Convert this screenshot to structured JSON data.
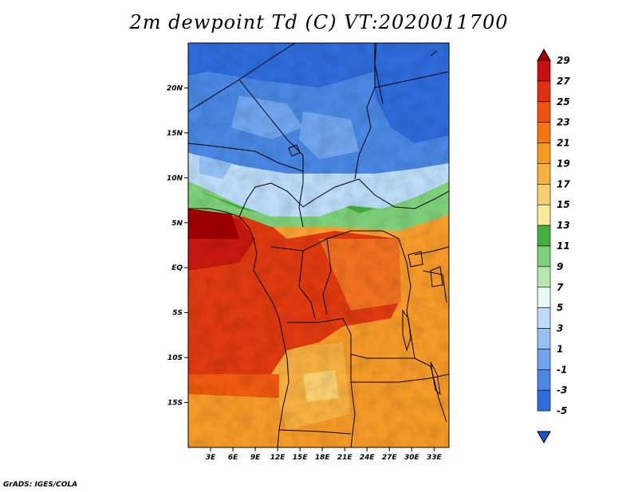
{
  "map": {
    "title": "2m dewpoint Td (C) VT:2020011700",
    "credit": "GrADS: IGES/COLA",
    "lon_range": [
      0,
      35
    ],
    "lat_range": [
      -20,
      25
    ],
    "lat_ticks": [
      {
        "value": 20,
        "label": "20N"
      },
      {
        "value": 15,
        "label": "15N"
      },
      {
        "value": 10,
        "label": "10N"
      },
      {
        "value": 5,
        "label": "5N"
      },
      {
        "value": 0,
        "label": "EQ"
      },
      {
        "value": -5,
        "label": "5S"
      },
      {
        "value": -10,
        "label": "10S"
      },
      {
        "value": -15,
        "label": "15S"
      }
    ],
    "lon_ticks": [
      {
        "value": 3,
        "label": "3E"
      },
      {
        "value": 6,
        "label": "6E"
      },
      {
        "value": 9,
        "label": "9E"
      },
      {
        "value": 12,
        "label": "12E"
      },
      {
        "value": 15,
        "label": "15E"
      },
      {
        "value": 18,
        "label": "18E"
      },
      {
        "value": 21,
        "label": "21E"
      },
      {
        "value": 24,
        "label": "24E"
      },
      {
        "value": 27,
        "label": "27E"
      },
      {
        "value": 30,
        "label": "30E"
      },
      {
        "value": 33,
        "label": "33E"
      }
    ],
    "colorbar": {
      "labels": [
        "29",
        "27",
        "25",
        "23",
        "21",
        "19",
        "17",
        "15",
        "13",
        "11",
        "9",
        "7",
        "5",
        "3",
        "1",
        "-1",
        "-3",
        "-5"
      ],
      "colors": [
        "#a00000",
        "#c81010",
        "#e03010",
        "#f05010",
        "#f57510",
        "#f79a20",
        "#f7b040",
        "#f8cf70",
        "#f8ec98",
        "#44b040",
        "#7ed07a",
        "#b4e8b0",
        "#e8f8f8",
        "#bcdcf8",
        "#94c0f4",
        "#70a4ec",
        "#4a88e4",
        "#2e6cdc",
        "#1c56c8"
      ]
    }
  }
}
